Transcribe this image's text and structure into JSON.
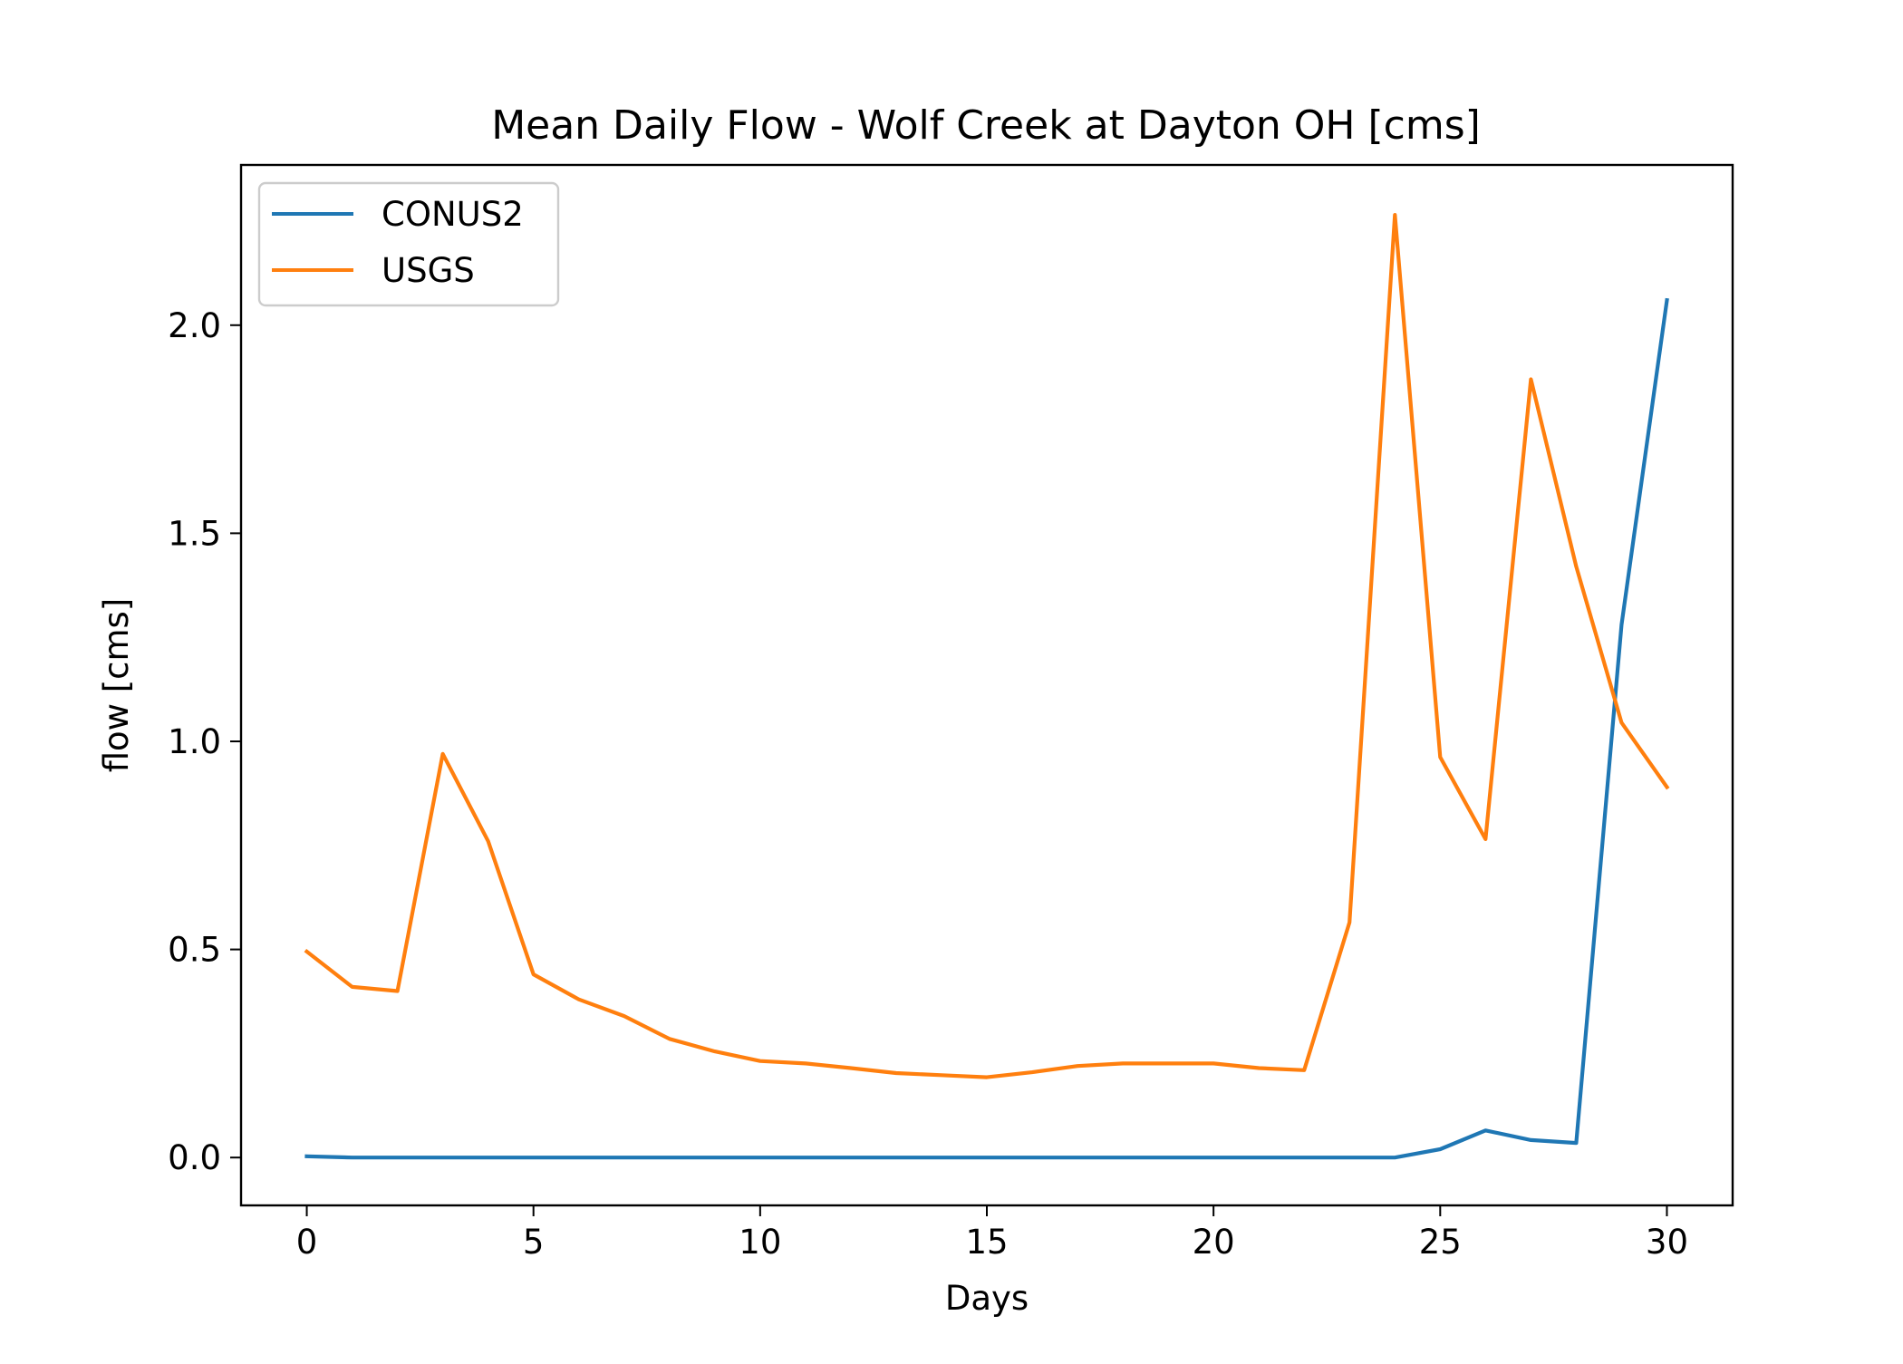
{
  "chart_data": {
    "type": "line",
    "title": "Mean Daily Flow - Wolf Creek at Dayton OH [cms]",
    "xlabel": "Days",
    "ylabel": "flow [cms]",
    "xlim": [
      -1.45,
      31.45
    ],
    "ylim": [
      -0.115,
      2.385
    ],
    "xticks": [
      0,
      5,
      10,
      15,
      20,
      25,
      30
    ],
    "xtick_labels": [
      "0",
      "5",
      "10",
      "15",
      "20",
      "25",
      "30"
    ],
    "yticks": [
      0.0,
      0.5,
      1.0,
      1.5,
      2.0
    ],
    "ytick_labels": [
      "0.0",
      "0.5",
      "1.0",
      "1.5",
      "2.0"
    ],
    "grid": false,
    "legend": "top-left",
    "x": [
      0,
      1,
      2,
      3,
      4,
      5,
      6,
      7,
      8,
      9,
      10,
      11,
      12,
      13,
      14,
      15,
      16,
      17,
      18,
      19,
      20,
      21,
      22,
      23,
      24,
      25,
      26,
      27,
      28,
      29,
      30
    ],
    "series": [
      {
        "name": "CONUS2",
        "color": "#1f77b4",
        "values": [
          0.003,
          0.0,
          0.0,
          0.0,
          0.0,
          0.0,
          0.0,
          0.0,
          0.0,
          0.0,
          0.0,
          0.0,
          0.0,
          0.0,
          0.0,
          0.0,
          0.0,
          0.0,
          0.0,
          0.0,
          0.0,
          0.0,
          0.0,
          0.0,
          0.0,
          0.02,
          0.065,
          0.042,
          0.035,
          1.28,
          2.06
        ]
      },
      {
        "name": "USGS",
        "color": "#ff7f0e",
        "values": [
          0.495,
          0.41,
          0.4,
          0.97,
          0.76,
          0.44,
          0.38,
          0.34,
          0.285,
          0.255,
          0.232,
          0.226,
          0.215,
          0.203,
          0.198,
          0.193,
          0.205,
          0.22,
          0.226,
          0.226,
          0.226,
          0.215,
          0.21,
          0.565,
          2.265,
          0.962,
          0.765,
          1.87,
          1.42,
          1.045,
          0.89
        ]
      }
    ]
  }
}
